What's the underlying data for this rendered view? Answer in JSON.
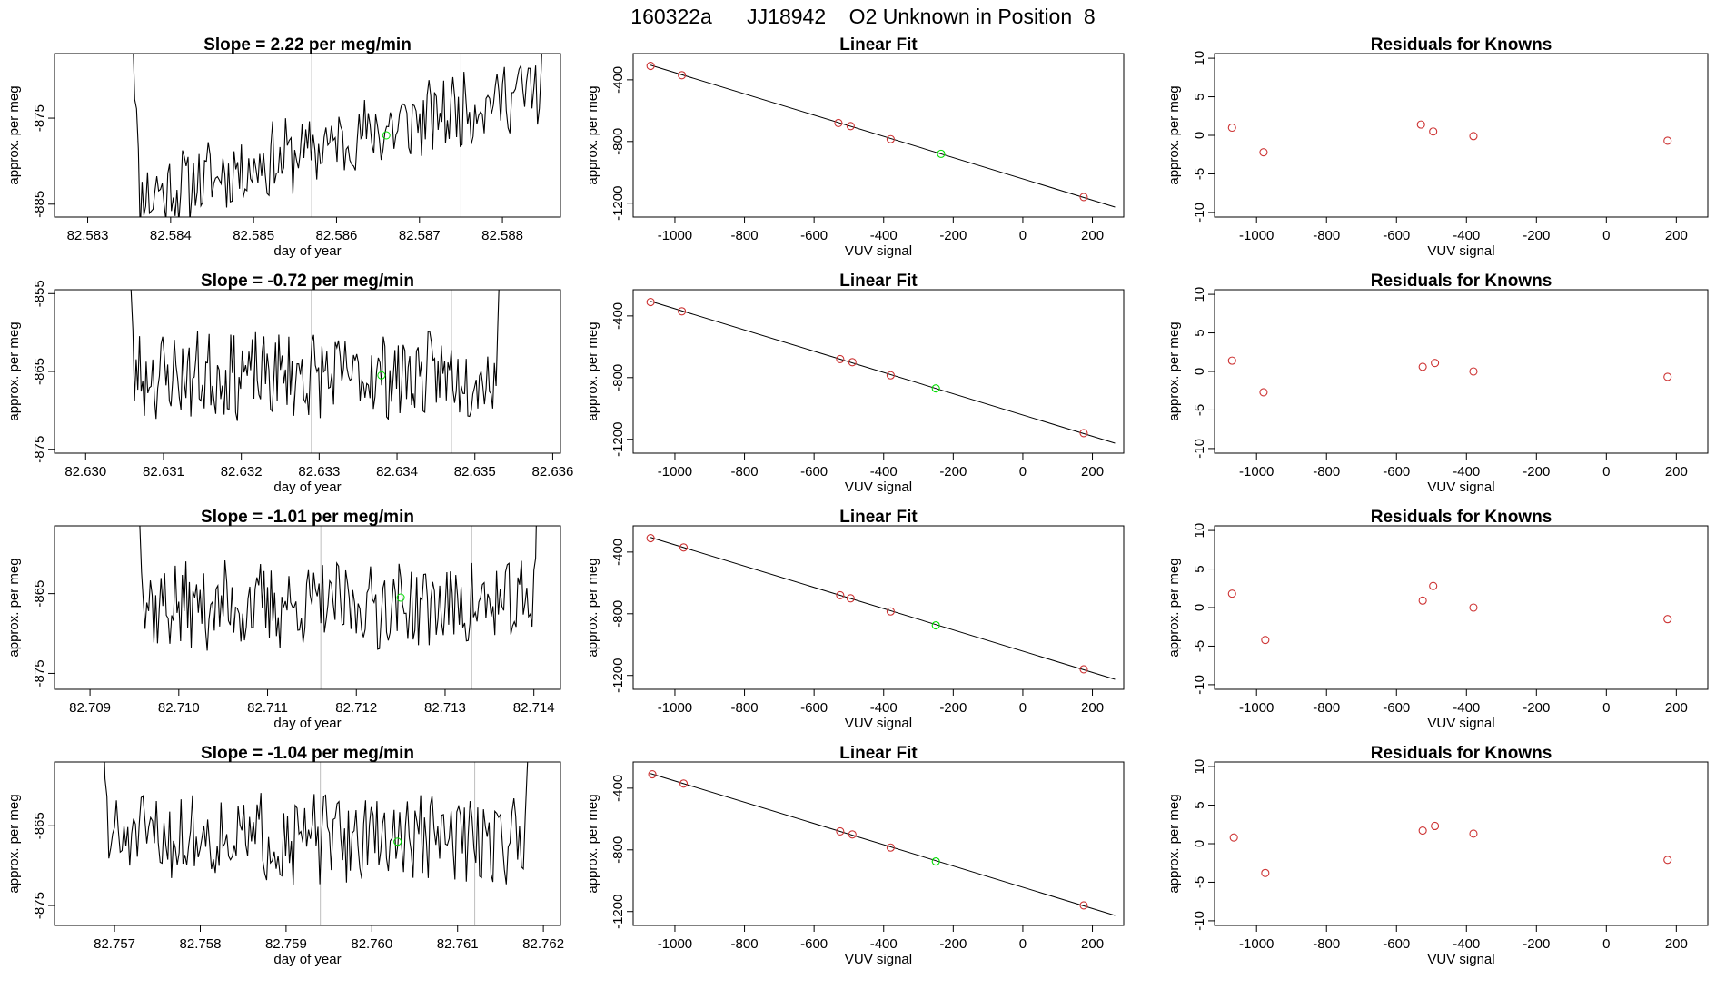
{
  "page_title": "160322a      JJ18942    O2 Unknown in Position  8",
  "colors": {
    "trace": "#000000",
    "known_point": "#cd3333",
    "unknown_point": "#00dd00",
    "marker_line": "#bfbfbf",
    "fit_line": "#000000"
  },
  "chart_data": [
    {
      "type": "line",
      "row": 1,
      "panel": "timeseries",
      "title": "Slope =  2.22  per meg/min",
      "xlabel": "day of year",
      "ylabel": "approx. per meg",
      "xlim": [
        82.5826,
        82.5887
      ],
      "ylim": [
        -886.5,
        -867.5
      ],
      "x_ticks": [
        82.583,
        82.584,
        82.585,
        82.586,
        82.587,
        82.588
      ],
      "x_tick_labels": [
        "82.583",
        "82.584",
        "82.585",
        "82.586",
        "82.587",
        "82.588"
      ],
      "y_ticks": [
        -875,
        -885
      ],
      "y_tick_labels": [
        "-875",
        "-885"
      ],
      "markers": [
        82.5857,
        82.5875
      ],
      "unknown_point": {
        "x": 82.5866,
        "y": -877
      },
      "trace": {
        "start": 82.5835,
        "end": 82.5886,
        "base": -884.5,
        "noise": 2.4,
        "trend": 13.5,
        "seed": 11
      }
    },
    {
      "type": "scatter",
      "row": 1,
      "panel": "linear_fit",
      "title": "Linear Fit",
      "xlabel": "VUV signal",
      "ylabel": "approx. per meg",
      "xlim": [
        -1120,
        290
      ],
      "ylim": [
        -1290,
        -230
      ],
      "x_ticks": [
        -1000,
        -800,
        -600,
        -400,
        -200,
        0,
        200
      ],
      "x_tick_labels": [
        "-1000",
        "-800",
        "-600",
        "-400",
        "-200",
        "0",
        "200"
      ],
      "y_ticks": [
        -400,
        -800,
        -1200
      ],
      "y_tick_labels": [
        "-400",
        "-800",
        "-1200"
      ],
      "known_points": [
        {
          "x": -1070,
          "y": -310
        },
        {
          "x": -980,
          "y": -370
        },
        {
          "x": -530,
          "y": -680
        },
        {
          "x": -495,
          "y": -700
        },
        {
          "x": -380,
          "y": -785
        },
        {
          "x": 175,
          "y": -1160
        }
      ],
      "unknown_point": {
        "x": -235,
        "y": -880
      },
      "fit_line": {
        "x": [
          -1070,
          265
        ],
        "y": [
          -305,
          -1225
        ]
      }
    },
    {
      "type": "scatter",
      "row": 1,
      "panel": "residuals",
      "title": "Residuals for Knowns",
      "xlabel": "VUV signal",
      "ylabel": "approx. per meg",
      "xlim": [
        -1120,
        290
      ],
      "ylim": [
        -10.6,
        10.6
      ],
      "x_ticks": [
        -1000,
        -800,
        -600,
        -400,
        -200,
        0,
        200
      ],
      "x_tick_labels": [
        "-1000",
        "-800",
        "-600",
        "-400",
        "-200",
        "0",
        "200"
      ],
      "y_ticks": [
        10,
        5,
        0,
        -5,
        -10
      ],
      "y_tick_labels": [
        "10",
        "5",
        "0",
        "-5",
        "-10"
      ],
      "known_points": [
        {
          "x": -1070,
          "y": 1.0
        },
        {
          "x": -980,
          "y": -2.2
        },
        {
          "x": -530,
          "y": 1.4
        },
        {
          "x": -495,
          "y": 0.5
        },
        {
          "x": -380,
          "y": -0.1
        },
        {
          "x": 175,
          "y": -0.7
        }
      ]
    },
    {
      "type": "line",
      "row": 2,
      "panel": "timeseries",
      "title": "Slope =  -0.72  per meg/min",
      "xlabel": "day of year",
      "ylabel": "approx. per meg",
      "xlim": [
        82.6296,
        82.6361
      ],
      "ylim": [
        -875.5,
        -854.5
      ],
      "x_ticks": [
        82.63,
        82.631,
        82.632,
        82.633,
        82.634,
        82.635,
        82.636
      ],
      "x_tick_labels": [
        "82.630",
        "82.631",
        "82.632",
        "82.633",
        "82.634",
        "82.635",
        "82.636"
      ],
      "y_ticks": [
        -855,
        -865,
        -875
      ],
      "y_tick_labels": [
        "-855",
        "-865",
        "-875"
      ],
      "markers": [
        82.6329,
        82.6347
      ],
      "unknown_point": {
        "x": 82.6338,
        "y": -865.5
      },
      "trace": {
        "start": 82.6305,
        "end": 82.6354,
        "base": -865.5,
        "noise": 3.0,
        "trend": 0,
        "seed": 23
      }
    },
    {
      "type": "scatter",
      "row": 2,
      "panel": "linear_fit",
      "title": "Linear Fit",
      "xlabel": "VUV signal",
      "ylabel": "approx. per meg",
      "xlim": [
        -1120,
        290
      ],
      "ylim": [
        -1290,
        -230
      ],
      "x_ticks": [
        -1000,
        -800,
        -600,
        -400,
        -200,
        0,
        200
      ],
      "x_tick_labels": [
        "-1000",
        "-800",
        "-600",
        "-400",
        "-200",
        "0",
        "200"
      ],
      "y_ticks": [
        -400,
        -800,
        -1200
      ],
      "y_tick_labels": [
        "-400",
        "-800",
        "-1200"
      ],
      "known_points": [
        {
          "x": -1070,
          "y": -310
        },
        {
          "x": -980,
          "y": -370
        },
        {
          "x": -525,
          "y": -680
        },
        {
          "x": -490,
          "y": -700
        },
        {
          "x": -380,
          "y": -785
        },
        {
          "x": 175,
          "y": -1160
        }
      ],
      "unknown_point": {
        "x": -250,
        "y": -870
      },
      "fit_line": {
        "x": [
          -1070,
          265
        ],
        "y": [
          -305,
          -1225
        ]
      }
    },
    {
      "type": "scatter",
      "row": 2,
      "panel": "residuals",
      "title": "Residuals for Knowns",
      "xlabel": "VUV signal",
      "ylabel": "approx. per meg",
      "xlim": [
        -1120,
        290
      ],
      "ylim": [
        -10.6,
        10.6
      ],
      "x_ticks": [
        -1000,
        -800,
        -600,
        -400,
        -200,
        0,
        200
      ],
      "x_tick_labels": [
        "-1000",
        "-800",
        "-600",
        "-400",
        "-200",
        "0",
        "200"
      ],
      "y_ticks": [
        10,
        5,
        0,
        -5,
        -10
      ],
      "y_tick_labels": [
        "10",
        "5",
        "0",
        "-5",
        "-10"
      ],
      "known_points": [
        {
          "x": -1070,
          "y": 1.4
        },
        {
          "x": -980,
          "y": -2.7
        },
        {
          "x": -525,
          "y": 0.6
        },
        {
          "x": -490,
          "y": 1.1
        },
        {
          "x": -380,
          "y": 0.0
        },
        {
          "x": 175,
          "y": -0.7
        }
      ]
    },
    {
      "type": "line",
      "row": 3,
      "panel": "timeseries",
      "title": "Slope =  -1.01  per meg/min",
      "xlabel": "day of year",
      "ylabel": "approx. per meg",
      "xlim": [
        82.7086,
        82.7143
      ],
      "ylim": [
        -877,
        -856.5
      ],
      "x_ticks": [
        82.709,
        82.71,
        82.711,
        82.712,
        82.713,
        82.714
      ],
      "x_tick_labels": [
        "82.709",
        "82.710",
        "82.711",
        "82.712",
        "82.713",
        "82.714"
      ],
      "y_ticks": [
        -865,
        -875
      ],
      "y_tick_labels": [
        "-865",
        "-875"
      ],
      "markers": [
        82.7116,
        82.7133
      ],
      "unknown_point": {
        "x": 82.7125,
        "y": -865.5
      },
      "trace": {
        "start": 82.7095,
        "end": 82.7141,
        "base": -866.5,
        "noise": 3.0,
        "trend": 0,
        "seed": 37
      }
    },
    {
      "type": "scatter",
      "row": 3,
      "panel": "linear_fit",
      "title": "Linear Fit",
      "xlabel": "VUV signal",
      "ylabel": "approx. per meg",
      "xlim": [
        -1120,
        290
      ],
      "ylim": [
        -1290,
        -230
      ],
      "x_ticks": [
        -1000,
        -800,
        -600,
        -400,
        -200,
        0,
        200
      ],
      "x_tick_labels": [
        "-1000",
        "-800",
        "-600",
        "-400",
        "-200",
        "0",
        "200"
      ],
      "y_ticks": [
        -400,
        -800,
        -1200
      ],
      "y_tick_labels": [
        "-400",
        "-800",
        "-1200"
      ],
      "known_points": [
        {
          "x": -1070,
          "y": -310
        },
        {
          "x": -975,
          "y": -370
        },
        {
          "x": -525,
          "y": -680
        },
        {
          "x": -495,
          "y": -700
        },
        {
          "x": -380,
          "y": -785
        },
        {
          "x": 175,
          "y": -1160
        }
      ],
      "unknown_point": {
        "x": -250,
        "y": -875
      },
      "fit_line": {
        "x": [
          -1070,
          265
        ],
        "y": [
          -305,
          -1225
        ]
      }
    },
    {
      "type": "scatter",
      "row": 3,
      "panel": "residuals",
      "title": "Residuals for Knowns",
      "xlabel": "VUV signal",
      "ylabel": "approx. per meg",
      "xlim": [
        -1120,
        290
      ],
      "ylim": [
        -10.6,
        10.6
      ],
      "x_ticks": [
        -1000,
        -800,
        -600,
        -400,
        -200,
        0,
        200
      ],
      "x_tick_labels": [
        "-1000",
        "-800",
        "-600",
        "-400",
        "-200",
        "0",
        "200"
      ],
      "y_ticks": [
        10,
        5,
        0,
        -5,
        -10
      ],
      "y_tick_labels": [
        "10",
        "5",
        "0",
        "-5",
        "-10"
      ],
      "known_points": [
        {
          "x": -1070,
          "y": 1.8
        },
        {
          "x": -975,
          "y": -4.2
        },
        {
          "x": -525,
          "y": 0.9
        },
        {
          "x": -495,
          "y": 2.8
        },
        {
          "x": -380,
          "y": 0.0
        },
        {
          "x": 175,
          "y": -1.5
        }
      ]
    },
    {
      "type": "line",
      "row": 4,
      "panel": "timeseries",
      "title": "Slope =  -1.04  per meg/min",
      "xlabel": "day of year",
      "ylabel": "approx. per meg",
      "xlim": [
        82.7563,
        82.7622
      ],
      "ylim": [
        -877.5,
        -857
      ],
      "x_ticks": [
        82.757,
        82.758,
        82.759,
        82.76,
        82.761,
        82.762
      ],
      "x_tick_labels": [
        "82.757",
        "82.758",
        "82.759",
        "82.760",
        "82.761",
        "82.762"
      ],
      "y_ticks": [
        -865,
        -875
      ],
      "y_tick_labels": [
        "-865",
        "-875"
      ],
      "markers": [
        82.7594,
        82.7612
      ],
      "unknown_point": {
        "x": 82.7603,
        "y": -867
      },
      "trace": {
        "start": 82.7568,
        "end": 82.7619,
        "base": -866.5,
        "noise": 3.0,
        "trend": 0,
        "seed": 51
      }
    },
    {
      "type": "scatter",
      "row": 4,
      "panel": "linear_fit",
      "title": "Linear Fit",
      "xlabel": "VUV signal",
      "ylabel": "approx. per meg",
      "xlim": [
        -1120,
        290
      ],
      "ylim": [
        -1290,
        -230
      ],
      "x_ticks": [
        -1000,
        -800,
        -600,
        -400,
        -200,
        0,
        200
      ],
      "x_tick_labels": [
        "-1000",
        "-800",
        "-600",
        "-400",
        "-200",
        "0",
        "200"
      ],
      "y_ticks": [
        -400,
        -800,
        -1200
      ],
      "y_tick_labels": [
        "-400",
        "-800",
        "-1200"
      ],
      "known_points": [
        {
          "x": -1065,
          "y": -310
        },
        {
          "x": -975,
          "y": -370
        },
        {
          "x": -525,
          "y": -680
        },
        {
          "x": -490,
          "y": -700
        },
        {
          "x": -380,
          "y": -785
        },
        {
          "x": 175,
          "y": -1160
        }
      ],
      "unknown_point": {
        "x": -250,
        "y": -875
      },
      "fit_line": {
        "x": [
          -1070,
          265
        ],
        "y": [
          -305,
          -1225
        ]
      }
    },
    {
      "type": "scatter",
      "row": 4,
      "panel": "residuals",
      "title": "Residuals for Knowns",
      "xlabel": "VUV signal",
      "ylabel": "approx. per meg",
      "xlim": [
        -1120,
        290
      ],
      "ylim": [
        -10.6,
        10.6
      ],
      "x_ticks": [
        -1000,
        -800,
        -600,
        -400,
        -200,
        0,
        200
      ],
      "x_tick_labels": [
        "-1000",
        "-800",
        "-600",
        "-400",
        "-200",
        "0",
        "200"
      ],
      "y_ticks": [
        10,
        5,
        0,
        -5,
        -10
      ],
      "y_tick_labels": [
        "10",
        "5",
        "0",
        "-5",
        "-10"
      ],
      "known_points": [
        {
          "x": -1065,
          "y": 0.8
        },
        {
          "x": -975,
          "y": -3.8
        },
        {
          "x": -525,
          "y": 1.7
        },
        {
          "x": -490,
          "y": 2.3
        },
        {
          "x": -380,
          "y": 1.3
        },
        {
          "x": 175,
          "y": -2.1
        }
      ]
    }
  ]
}
